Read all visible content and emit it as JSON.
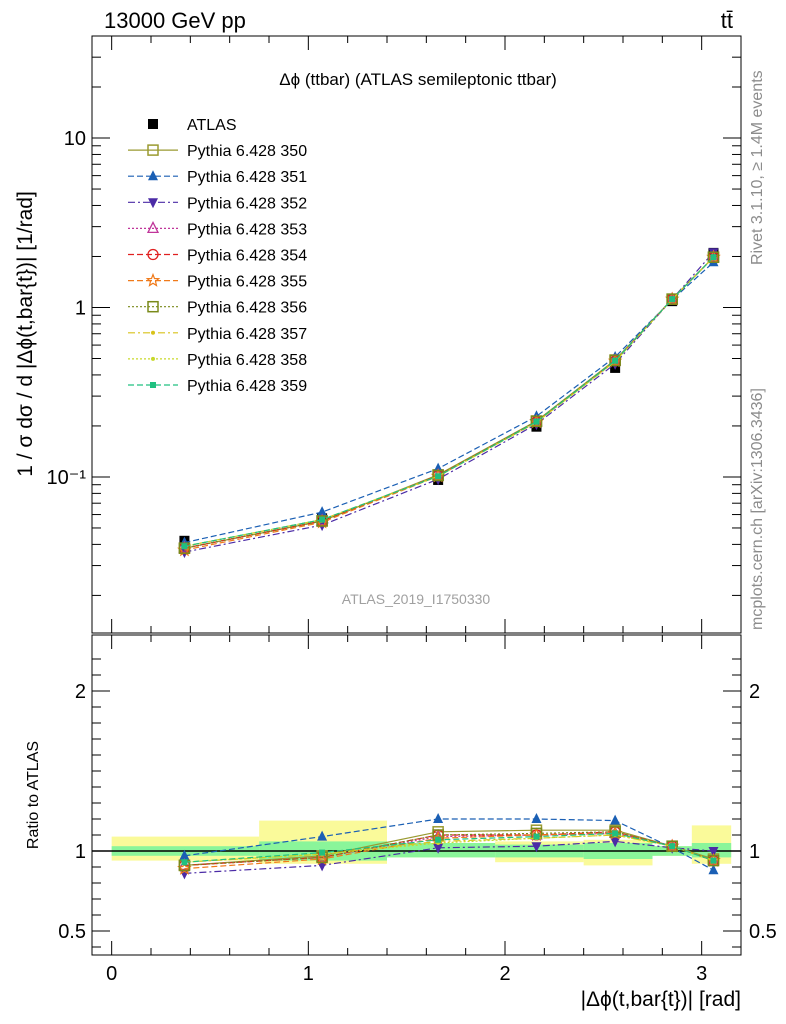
{
  "header": {
    "energy_label": "13000 GeV pp",
    "process_label": "tt̄"
  },
  "side_labels": {
    "rivet": "Rivet 3.1.10, ≥ 1.4M events",
    "mcplots": "mcplots.cern.ch [arXiv:1306.3436]"
  },
  "chart_data": [
    {
      "type": "line",
      "title": "Δϕ (ttbar) (ATLAS semileptonic ttbar)",
      "xlabel": "",
      "ylabel": "1 / σ dσ / d |Δϕ(t,bar{t})| [1/rad]",
      "yscale": "log",
      "ylim": [
        0.012,
        40
      ],
      "xlim": [
        -0.1,
        3.2
      ],
      "ytick_labels": [
        "10⁻¹",
        "1",
        "10"
      ],
      "watermark": "ATLAS_2019_I1750330",
      "legend_position": "top-left",
      "x": [
        0.37,
        1.07,
        1.66,
        2.16,
        2.56,
        2.85,
        3.06
      ],
      "series": [
        {
          "name": "ATLAS",
          "color": "#000000",
          "marker": "square-filled",
          "values": [
            0.042,
            0.057,
            0.096,
            0.198,
            0.44,
            1.09,
            2.1
          ]
        },
        {
          "name": "Pythia 6.428 350",
          "color": "#9a9a30",
          "marker": "square-open",
          "dash": "solid",
          "values": [
            0.038,
            0.055,
            0.103,
            0.214,
            0.49,
            1.12,
            1.98
          ]
        },
        {
          "name": "Pythia 6.428 351",
          "color": "#1a5fb4",
          "marker": "triangle-up",
          "dash": "dashed",
          "values": [
            0.041,
            0.062,
            0.112,
            0.228,
            0.51,
            1.11,
            1.85
          ]
        },
        {
          "name": "Pythia 6.428 352",
          "color": "#4b2ba6",
          "marker": "triangle-down",
          "dash": "dashdot",
          "values": [
            0.036,
            0.052,
            0.097,
            0.205,
            0.465,
            1.12,
            2.12
          ]
        },
        {
          "name": "Pythia 6.428 353",
          "color": "#c0359a",
          "marker": "triangle-up-open",
          "dash": "dotted",
          "values": [
            0.038,
            0.055,
            0.102,
            0.212,
            0.485,
            1.12,
            1.98
          ]
        },
        {
          "name": "Pythia 6.428 354",
          "color": "#e02020",
          "marker": "circle-open",
          "dash": "dashed",
          "values": [
            0.038,
            0.055,
            0.102,
            0.212,
            0.485,
            1.12,
            1.98
          ]
        },
        {
          "name": "Pythia 6.428 355",
          "color": "#f07a1a",
          "marker": "star-open",
          "dash": "dashed",
          "values": [
            0.037,
            0.054,
            0.101,
            0.211,
            0.483,
            1.12,
            1.98
          ]
        },
        {
          "name": "Pythia 6.428 356",
          "color": "#7a8a1a",
          "marker": "square-open",
          "dash": "dotted",
          "values": [
            0.038,
            0.055,
            0.102,
            0.213,
            0.487,
            1.12,
            1.98
          ]
        },
        {
          "name": "Pythia 6.428 357",
          "color": "#d8c21a",
          "marker": "dot",
          "dash": "dashdot",
          "values": [
            0.039,
            0.056,
            0.101,
            0.21,
            0.48,
            1.12,
            1.98
          ]
        },
        {
          "name": "Pythia 6.428 358",
          "color": "#c8d82a",
          "marker": "dot",
          "dash": "dotted",
          "values": [
            0.039,
            0.056,
            0.101,
            0.21,
            0.48,
            1.12,
            1.98
          ]
        },
        {
          "name": "Pythia 6.428 359",
          "color": "#20c080",
          "marker": "square-small",
          "dash": "dashed",
          "values": [
            0.039,
            0.056,
            0.101,
            0.212,
            0.485,
            1.12,
            1.98
          ]
        }
      ]
    },
    {
      "type": "line",
      "title": "",
      "xlabel": "|Δϕ(t,bar{t})| [rad]",
      "ylabel": "Ratio to ATLAS",
      "ylim": [
        0.35,
        2.35
      ],
      "xlim": [
        -0.1,
        3.2
      ],
      "xtick_labels": [
        "0",
        "1",
        "2",
        "3"
      ],
      "ytick_labels": [
        "0.5",
        "1",
        "2"
      ],
      "band_edges": [
        0.0,
        0.75,
        1.4,
        1.95,
        2.4,
        2.75,
        2.95,
        3.15
      ],
      "band_inner": [
        [
          0.97,
          1.03
        ],
        [
          0.94,
          1.06
        ],
        [
          0.96,
          1.05
        ],
        [
          0.96,
          1.04
        ],
        [
          0.95,
          1.05
        ],
        [
          0.97,
          1.03
        ],
        [
          0.96,
          1.05
        ]
      ],
      "band_outer": [
        [
          0.94,
          1.09
        ],
        [
          0.92,
          1.19
        ],
        [
          0.96,
          1.05
        ],
        [
          0.93,
          1.06
        ],
        [
          0.91,
          1.07
        ],
        [
          0.97,
          1.03
        ],
        [
          0.92,
          1.16
        ]
      ],
      "band_colors": {
        "inner": "#8af59a",
        "outer": "#fafa9a"
      },
      "x": [
        0.37,
        1.07,
        1.66,
        2.16,
        2.56,
        2.85,
        3.06
      ],
      "series": [
        {
          "name": "Pythia 6.428 350",
          "color": "#9a9a30",
          "marker": "square-open",
          "dash": "solid",
          "values": [
            0.91,
            0.97,
            1.12,
            1.13,
            1.13,
            1.03,
            0.95
          ]
        },
        {
          "name": "Pythia 6.428 351",
          "color": "#1a5fb4",
          "marker": "triangle-up",
          "dash": "dashed",
          "values": [
            0.97,
            1.09,
            1.2,
            1.2,
            1.19,
            1.02,
            0.88
          ]
        },
        {
          "name": "Pythia 6.428 352",
          "color": "#4b2ba6",
          "marker": "triangle-down",
          "dash": "dashdot",
          "values": [
            0.86,
            0.91,
            1.02,
            1.03,
            1.06,
            1.02,
            1.0
          ]
        },
        {
          "name": "Pythia 6.428 353",
          "color": "#c0359a",
          "marker": "triangle-up-open",
          "dash": "dotted",
          "values": [
            0.91,
            0.96,
            1.09,
            1.1,
            1.11,
            1.03,
            0.94
          ]
        },
        {
          "name": "Pythia 6.428 354",
          "color": "#e02020",
          "marker": "circle-open",
          "dash": "dashed",
          "values": [
            0.91,
            0.96,
            1.1,
            1.1,
            1.12,
            1.03,
            0.94
          ]
        },
        {
          "name": "Pythia 6.428 355",
          "color": "#f07a1a",
          "marker": "star-open",
          "dash": "dashed",
          "values": [
            0.89,
            0.95,
            1.08,
            1.1,
            1.11,
            1.03,
            0.94
          ]
        },
        {
          "name": "Pythia 6.428 356",
          "color": "#7a8a1a",
          "marker": "square-open",
          "dash": "dotted",
          "values": [
            0.91,
            0.96,
            1.1,
            1.11,
            1.12,
            1.03,
            0.94
          ]
        },
        {
          "name": "Pythia 6.428 357",
          "color": "#d8c21a",
          "marker": "dot",
          "dash": "dashdot",
          "values": [
            0.93,
            0.98,
            1.06,
            1.08,
            1.1,
            1.03,
            0.94
          ]
        },
        {
          "name": "Pythia 6.428 358",
          "color": "#c8d82a",
          "marker": "dot",
          "dash": "dotted",
          "values": [
            0.93,
            0.98,
            1.05,
            1.08,
            1.1,
            1.03,
            0.94
          ]
        },
        {
          "name": "Pythia 6.428 359",
          "color": "#20c080",
          "marker": "square-small",
          "dash": "dashed",
          "values": [
            0.93,
            0.99,
            1.07,
            1.09,
            1.11,
            1.03,
            0.94
          ]
        }
      ]
    }
  ]
}
